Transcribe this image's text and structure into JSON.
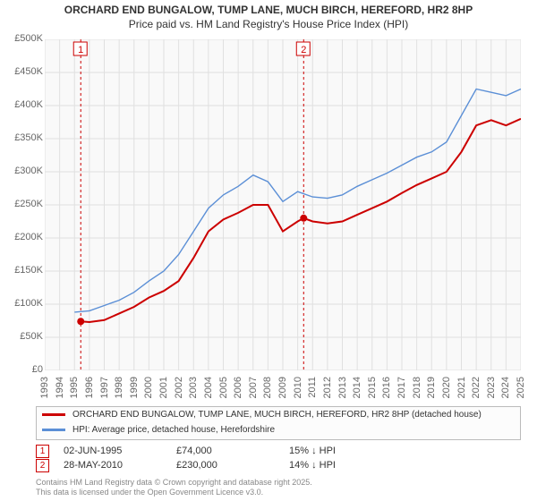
{
  "title": {
    "line1": "ORCHARD END BUNGALOW, TUMP LANE, MUCH BIRCH, HEREFORD, HR2 8HP",
    "line2": "Price paid vs. HM Land Registry's House Price Index (HPI)",
    "fontsize": 12,
    "color": "#333333"
  },
  "chart": {
    "type": "line",
    "background_color": "#ffffff",
    "plot_background_color": "#f9f9f9",
    "grid_color": "#e0e0e0",
    "axis_color": "#bbbbbb",
    "x": {
      "min": 1993,
      "max": 2025,
      "tick_step": 1,
      "label_fontsize": 11
    },
    "y": {
      "min": 0,
      "max": 500000,
      "ticks": [
        0,
        50000,
        100000,
        150000,
        200000,
        250000,
        300000,
        350000,
        400000,
        450000,
        500000
      ],
      "tick_labels": [
        "£0",
        "£50K",
        "£100K",
        "£150K",
        "£200K",
        "£250K",
        "£300K",
        "£350K",
        "£400K",
        "£450K",
        "£500K"
      ],
      "label_fontsize": 11
    },
    "series": [
      {
        "name": "ORCHARD END BUNGALOW, TUMP LANE, MUCH BIRCH, HEREFORD, HR2 8HP (detached house)",
        "color": "#cc0000",
        "line_width": 2,
        "data": [
          {
            "x": 1995.42,
            "y": 74000
          },
          {
            "x": 1996,
            "y": 73000
          },
          {
            "x": 1997,
            "y": 76000
          },
          {
            "x": 1998,
            "y": 86000
          },
          {
            "x": 1999,
            "y": 96000
          },
          {
            "x": 2000,
            "y": 110000
          },
          {
            "x": 2001,
            "y": 120000
          },
          {
            "x": 2002,
            "y": 135000
          },
          {
            "x": 2003,
            "y": 170000
          },
          {
            "x": 2004,
            "y": 210000
          },
          {
            "x": 2005,
            "y": 228000
          },
          {
            "x": 2006,
            "y": 238000
          },
          {
            "x": 2007,
            "y": 250000
          },
          {
            "x": 2008,
            "y": 250000
          },
          {
            "x": 2009,
            "y": 210000
          },
          {
            "x": 2010,
            "y": 225000
          },
          {
            "x": 2010.4,
            "y": 230000
          },
          {
            "x": 2011,
            "y": 225000
          },
          {
            "x": 2012,
            "y": 222000
          },
          {
            "x": 2013,
            "y": 225000
          },
          {
            "x": 2014,
            "y": 235000
          },
          {
            "x": 2015,
            "y": 245000
          },
          {
            "x": 2016,
            "y": 255000
          },
          {
            "x": 2017,
            "y": 268000
          },
          {
            "x": 2018,
            "y": 280000
          },
          {
            "x": 2019,
            "y": 290000
          },
          {
            "x": 2020,
            "y": 300000
          },
          {
            "x": 2021,
            "y": 330000
          },
          {
            "x": 2022,
            "y": 370000
          },
          {
            "x": 2023,
            "y": 378000
          },
          {
            "x": 2024,
            "y": 370000
          },
          {
            "x": 2025,
            "y": 380000
          }
        ]
      },
      {
        "name": "HPI: Average price, detached house, Herefordshire",
        "color": "#5b8fd6",
        "line_width": 1.4,
        "data": [
          {
            "x": 1995,
            "y": 88000
          },
          {
            "x": 1996,
            "y": 90000
          },
          {
            "x": 1997,
            "y": 98000
          },
          {
            "x": 1998,
            "y": 106000
          },
          {
            "x": 1999,
            "y": 118000
          },
          {
            "x": 2000,
            "y": 135000
          },
          {
            "x": 2001,
            "y": 150000
          },
          {
            "x": 2002,
            "y": 175000
          },
          {
            "x": 2003,
            "y": 210000
          },
          {
            "x": 2004,
            "y": 245000
          },
          {
            "x": 2005,
            "y": 265000
          },
          {
            "x": 2006,
            "y": 278000
          },
          {
            "x": 2007,
            "y": 295000
          },
          {
            "x": 2008,
            "y": 285000
          },
          {
            "x": 2009,
            "y": 255000
          },
          {
            "x": 2010,
            "y": 270000
          },
          {
            "x": 2011,
            "y": 262000
          },
          {
            "x": 2012,
            "y": 260000
          },
          {
            "x": 2013,
            "y": 265000
          },
          {
            "x": 2014,
            "y": 278000
          },
          {
            "x": 2015,
            "y": 288000
          },
          {
            "x": 2016,
            "y": 298000
          },
          {
            "x": 2017,
            "y": 310000
          },
          {
            "x": 2018,
            "y": 322000
          },
          {
            "x": 2019,
            "y": 330000
          },
          {
            "x": 2020,
            "y": 345000
          },
          {
            "x": 2021,
            "y": 385000
          },
          {
            "x": 2022,
            "y": 425000
          },
          {
            "x": 2023,
            "y": 420000
          },
          {
            "x": 2024,
            "y": 415000
          },
          {
            "x": 2025,
            "y": 425000
          }
        ]
      }
    ],
    "sale_markers": [
      {
        "n": "1",
        "x": 1995.42,
        "y": 74000,
        "line_color": "#cc0000",
        "line_dash": "3 3"
      },
      {
        "n": "2",
        "x": 2010.4,
        "y": 230000,
        "line_color": "#cc0000",
        "line_dash": "3 3"
      }
    ]
  },
  "legend": {
    "border_color": "#bbbbbb",
    "background": "#fcfcfc",
    "items": [
      {
        "color": "#cc0000",
        "label": "ORCHARD END BUNGALOW, TUMP LANE, MUCH BIRCH, HEREFORD, HR2 8HP (detached house)"
      },
      {
        "color": "#5b8fd6",
        "label": "HPI: Average price, detached house, Herefordshire"
      }
    ]
  },
  "sales": [
    {
      "n": "1",
      "date": "02-JUN-1995",
      "price": "£74,000",
      "delta": "15% ↓ HPI"
    },
    {
      "n": "2",
      "date": "28-MAY-2010",
      "price": "£230,000",
      "delta": "14% ↓ HPI"
    }
  ],
  "footer": {
    "line1": "Contains HM Land Registry data © Crown copyright and database right 2025.",
    "line2": "This data is licensed under the Open Government Licence v3.0."
  }
}
